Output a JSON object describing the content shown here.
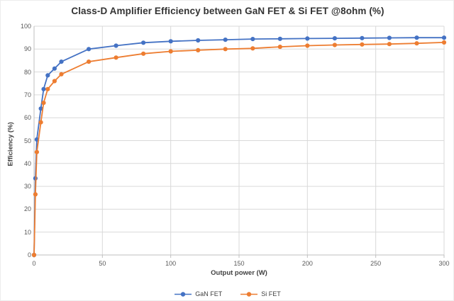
{
  "chart_data": {
    "type": "line",
    "title": "Class-D Amplifier Efficiency between GaN FET & Si FET @8ohm (%)",
    "xlabel": "Output power (W)",
    "ylabel": "Efficiency (%)",
    "xlim": [
      0,
      300
    ],
    "ylim": [
      0,
      100
    ],
    "x_ticks": [
      0,
      50,
      100,
      150,
      200,
      250,
      300
    ],
    "y_ticks": [
      0,
      10,
      20,
      30,
      40,
      50,
      60,
      70,
      80,
      90,
      100
    ],
    "grid": true,
    "legend_position": "bottom-center",
    "gridline_color": "#d9d9d9",
    "axis_color": "#bfbfbf",
    "tick_label_color": "#595959",
    "x": [
      0,
      1,
      2,
      5,
      7,
      10,
      15,
      20,
      40,
      60,
      80,
      100,
      120,
      140,
      160,
      180,
      200,
      220,
      240,
      260,
      280,
      300
    ],
    "series": [
      {
        "name": "GaN FET",
        "color": "#4472C4",
        "values": [
          0,
          33.5,
          50.5,
          64,
          72.5,
          78.5,
          81.5,
          84.5,
          90,
          91.5,
          92.8,
          93.4,
          93.8,
          94.1,
          94.4,
          94.5,
          94.6,
          94.7,
          94.8,
          94.9,
          95,
          95
        ]
      },
      {
        "name": "Si FET",
        "color": "#ED7D31",
        "values": [
          0,
          26.5,
          45,
          58,
          66.5,
          72.5,
          76,
          79,
          84.5,
          86.3,
          88,
          89,
          89.5,
          90,
          90.3,
          91,
          91.5,
          91.8,
          92,
          92.2,
          92.5,
          92.9
        ]
      }
    ]
  }
}
